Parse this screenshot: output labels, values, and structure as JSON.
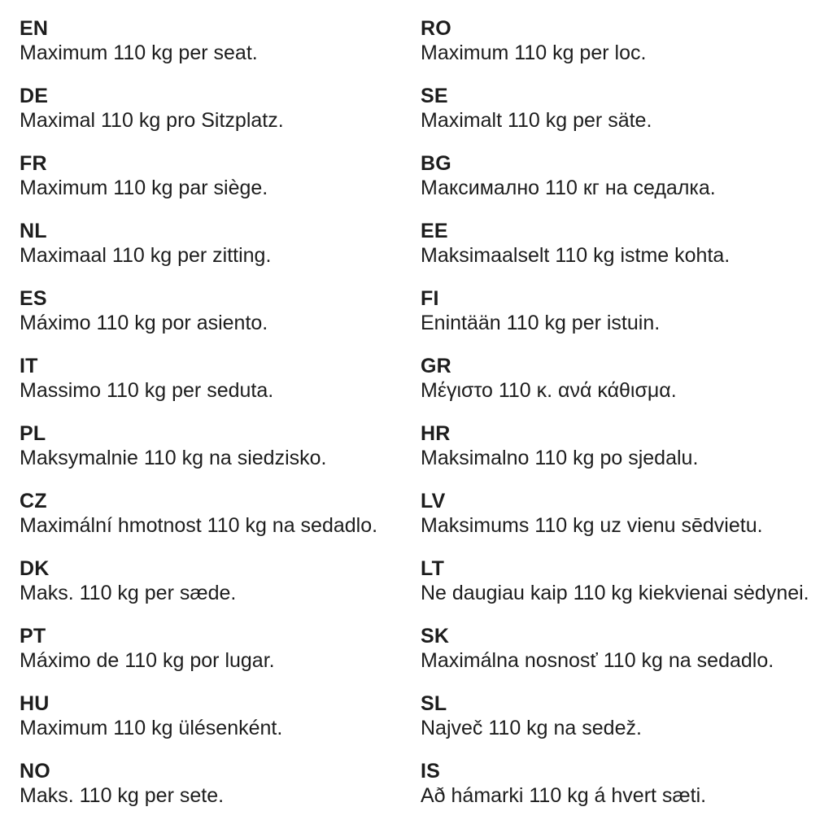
{
  "page": {
    "background_color": "#ffffff",
    "text_color": "#1d1d1d",
    "description": "Multilingual maximum seat weight notice, two columns"
  },
  "columns": {
    "left": [
      {
        "code": "EN",
        "text": "Maximum 110 kg per seat."
      },
      {
        "code": "DE",
        "text": "Maximal 110 kg pro Sitzplatz."
      },
      {
        "code": "FR",
        "text": "Maximum 110 kg par siège."
      },
      {
        "code": "NL",
        "text": "Maximaal 110 kg per zitting."
      },
      {
        "code": "ES",
        "text": "Máximo 110 kg por asiento."
      },
      {
        "code": "IT",
        "text": "Massimo 110 kg per seduta."
      },
      {
        "code": "PL",
        "text": "Maksymalnie 110 kg na siedzisko."
      },
      {
        "code": "CZ",
        "text": "Maximální hmotnost 110 kg na sedadlo."
      },
      {
        "code": "DK",
        "text": "Maks. 110 kg per sæde."
      },
      {
        "code": "PT",
        "text": "Máximo de 110 kg por lugar."
      },
      {
        "code": "HU",
        "text": "Maximum 110 kg ülésenként."
      },
      {
        "code": "NO",
        "text": "Maks. 110 kg per sete."
      }
    ],
    "right": [
      {
        "code": "RO",
        "text": "Maximum 110 kg per loc."
      },
      {
        "code": "SE",
        "text": "Maximalt 110 kg per säte."
      },
      {
        "code": "BG",
        "text": "Максимално 110 кг на седалка."
      },
      {
        "code": "EE",
        "text": "Maksimaalselt 110 kg istme kohta."
      },
      {
        "code": "FI",
        "text": "Enintään 110 kg per istuin."
      },
      {
        "code": "GR",
        "text": "Μέγιστο 110 κ. ανά κάθισμα."
      },
      {
        "code": "HR",
        "text": "Maksimalno 110 kg po sjedalu."
      },
      {
        "code": "LV",
        "text": "Maksimums 110 kg uz vienu sēdvietu."
      },
      {
        "code": "LT",
        "text": "Ne daugiau kaip 110 kg kiekvienai sėdynei."
      },
      {
        "code": "SK",
        "text": "Maximálna nosnosť 110 kg na sedadlo."
      },
      {
        "code": "SL",
        "text": "Največ 110 kg na sedež."
      },
      {
        "code": "IS",
        "text": "Að hámarki 110 kg á hvert sæti."
      }
    ]
  }
}
